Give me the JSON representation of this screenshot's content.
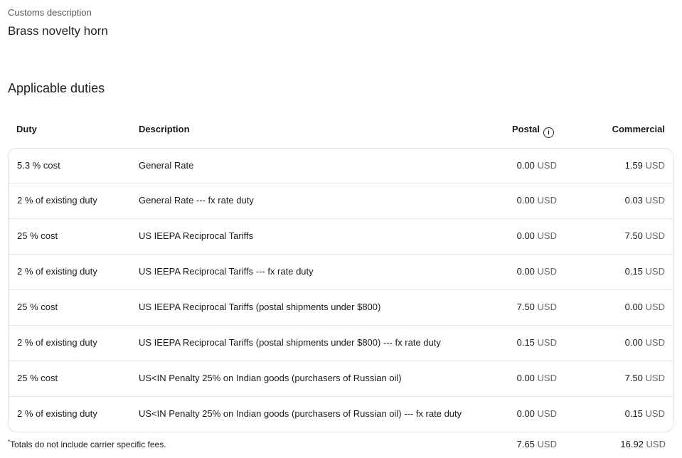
{
  "customs": {
    "label": "Customs description",
    "value": "Brass novelty horn"
  },
  "duties": {
    "title": "Applicable duties",
    "headers": {
      "duty": "Duty",
      "description": "Description",
      "postal": "Postal",
      "commercial": "Commercial"
    },
    "currency": "USD",
    "rows": [
      {
        "duty": "5.3 % cost",
        "description": "General Rate",
        "postal": "0.00",
        "commercial": "1.59"
      },
      {
        "duty": "2 % of existing duty",
        "description": "General Rate --- fx rate duty",
        "postal": "0.00",
        "commercial": "0.03"
      },
      {
        "duty": "25 % cost",
        "description": "US IEEPA Reciprocal Tariffs",
        "postal": "0.00",
        "commercial": "7.50"
      },
      {
        "duty": "2 % of existing duty",
        "description": "US IEEPA Reciprocal Tariffs --- fx rate duty",
        "postal": "0.00",
        "commercial": "0.15"
      },
      {
        "duty": "25 % cost",
        "description": "US IEEPA Reciprocal Tariffs (postal shipments under $800)",
        "postal": "7.50",
        "commercial": "0.00"
      },
      {
        "duty": "2 % of existing duty",
        "description": "US IEEPA Reciprocal Tariffs (postal shipments under $800) --- fx rate duty",
        "postal": "0.15",
        "commercial": "0.00"
      },
      {
        "duty": "25 % cost",
        "description": "US<IN Penalty 25% on Indian goods (purchasers of Russian oil)",
        "postal": "0.00",
        "commercial": "7.50"
      },
      {
        "duty": "2 % of existing duty",
        "description": "US<IN Penalty 25% on Indian goods (purchasers of Russian oil) --- fx rate duty",
        "postal": "0.00",
        "commercial": "0.15"
      }
    ],
    "footnote_mark": "*",
    "footnote": "Totals do not include carrier specific fees.",
    "totals": {
      "postal": "7.65",
      "commercial": "16.92"
    }
  },
  "icons": {
    "postal_info": "info-circle-icon"
  }
}
